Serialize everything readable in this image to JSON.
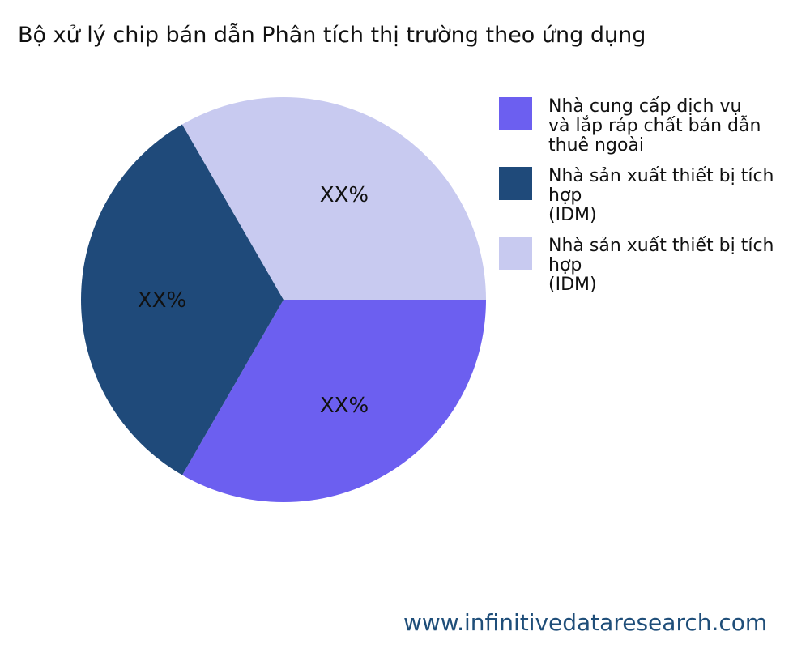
{
  "chart_data": {
    "type": "pie",
    "title": "Bộ xử lý chip bán dẫn Phân tích thị trường theo ứng dụng",
    "slices": [
      {
        "label": "Nhà cung cấp dịch vụ và lắp ráp chất bán dẫn thuê ngoài",
        "lines": [
          "Nhà cung cấp dịch vụ",
          "và lắp ráp chất bán dẫn",
          "thuê ngoài"
        ],
        "value": 33.33,
        "data_label": "XX%",
        "color": "#6c5ff0"
      },
      {
        "label": "Nhà sản xuất thiết bị tích hợp (IDM)",
        "lines": [
          "Nhà sản xuất thiết bị tích hợp",
          "(IDM)"
        ],
        "value": 33.33,
        "data_label": "XX%",
        "color": "#1f4a7a"
      },
      {
        "label": "Nhà sản xuất thiết bị tích hợp (IDM)",
        "lines": [
          "Nhà sản xuất thiết bị tích hợp",
          "(IDM)"
        ],
        "value": 33.34,
        "data_label": "XX%",
        "color": "#c8caf0"
      }
    ],
    "legend_position": "right"
  },
  "footer": "www.infinitivedataresearch.com"
}
